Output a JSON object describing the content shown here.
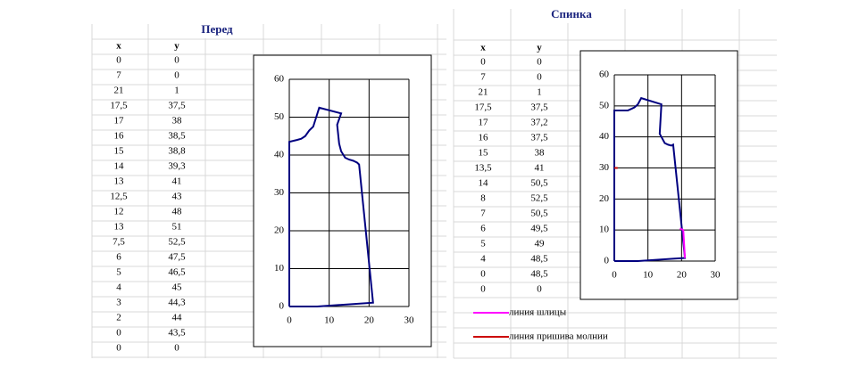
{
  "tables": [
    {
      "title": "Перед",
      "columns": [
        "x",
        "y"
      ],
      "rows": [
        [
          "0",
          "0"
        ],
        [
          "7",
          "0"
        ],
        [
          "21",
          "1"
        ],
        [
          "17,5",
          "37,5"
        ],
        [
          "17",
          "38"
        ],
        [
          "16",
          "38,5"
        ],
        [
          "15",
          "38,8"
        ],
        [
          "14",
          "39,3"
        ],
        [
          "13",
          "41"
        ],
        [
          "12,5",
          "43"
        ],
        [
          "12",
          "48"
        ],
        [
          "13",
          "51"
        ],
        [
          "7,5",
          "52,5"
        ],
        [
          "6",
          "47,5"
        ],
        [
          "5",
          "46,5"
        ],
        [
          "4",
          "45"
        ],
        [
          "3",
          "44,3"
        ],
        [
          "2",
          "44"
        ],
        [
          "0",
          "43,5"
        ],
        [
          "0",
          "0"
        ]
      ]
    },
    {
      "title": "Спинка",
      "columns": [
        "x",
        "y"
      ],
      "rows": [
        [
          "0",
          "0"
        ],
        [
          "7",
          "0"
        ],
        [
          "21",
          "1"
        ],
        [
          "17,5",
          "37,5"
        ],
        [
          "17",
          "37,2"
        ],
        [
          "16",
          "37,5"
        ],
        [
          "15",
          "38"
        ],
        [
          "13,5",
          "41"
        ],
        [
          "14",
          "50,5"
        ],
        [
          "8",
          "52,5"
        ],
        [
          "7",
          "50,5"
        ],
        [
          "6",
          "49,5"
        ],
        [
          "5",
          "49"
        ],
        [
          "4",
          "48,5"
        ],
        [
          "0",
          "48,5"
        ],
        [
          "0",
          "0"
        ]
      ]
    }
  ],
  "chart_data": [
    {
      "type": "line",
      "xlim": [
        0,
        30
      ],
      "xticks": [
        0,
        10,
        20,
        30
      ],
      "ylim": [
        0,
        60
      ],
      "yticks": [
        0,
        10,
        20,
        30,
        40,
        50,
        60
      ],
      "grid": true,
      "series": [
        {
          "color": "#000080",
          "x": [
            0,
            7,
            21,
            17.5,
            17,
            16,
            15,
            14,
            13,
            12.5,
            12,
            13,
            7.5,
            6,
            5,
            4,
            3,
            2,
            0,
            0
          ],
          "values": [
            0,
            0,
            1,
            37.5,
            38,
            38.5,
            38.8,
            39.3,
            41,
            43,
            48,
            51,
            52.5,
            47.5,
            46.5,
            45,
            44.3,
            44,
            43.5,
            0
          ]
        }
      ]
    },
    {
      "type": "line",
      "xlim": [
        0,
        30
      ],
      "xticks": [
        0,
        10,
        20,
        30
      ],
      "ylim": [
        0,
        60
      ],
      "yticks": [
        0,
        10,
        20,
        30,
        40,
        50,
        60
      ],
      "grid": true,
      "series": [
        {
          "color": "#000080",
          "x": [
            0,
            7,
            21,
            17.5,
            17,
            16,
            15,
            13.5,
            14,
            8,
            7,
            6,
            5,
            4,
            0,
            0
          ],
          "values": [
            0,
            0,
            1,
            37.5,
            37.2,
            37.5,
            38,
            41,
            50.5,
            52.5,
            50.5,
            49.5,
            49,
            48.5,
            48.5,
            0
          ]
        },
        {
          "name": "линия шлицы",
          "color": "#ff00ff",
          "x": [
            19.5,
            20.5,
            21
          ],
          "values": [
            10.5,
            10,
            1
          ]
        },
        {
          "name": "линия пришива молнии",
          "color": "#cc0000",
          "x": [
            0,
            1
          ],
          "values": [
            30,
            30
          ]
        }
      ]
    }
  ]
}
